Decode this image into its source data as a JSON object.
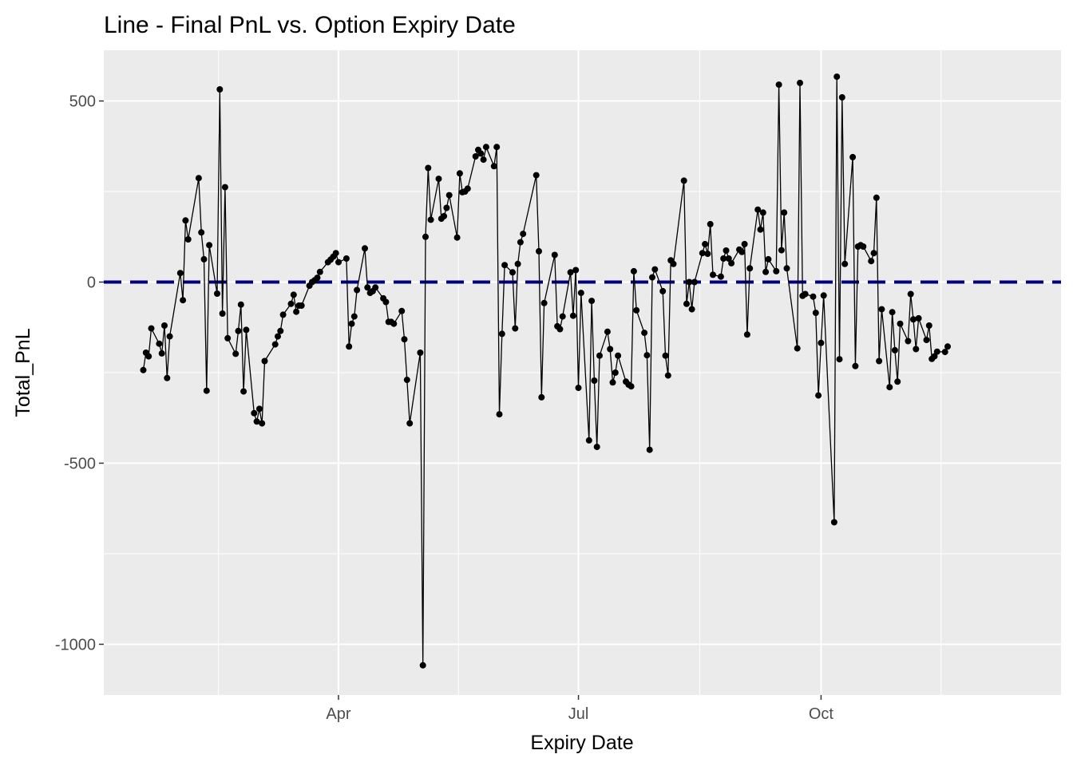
{
  "chart_data": {
    "type": "line",
    "title": "Line - Final PnL vs. Option Expiry Date",
    "xlabel": "Expiry Date",
    "ylabel": "Total_PnL",
    "x_tick_labels": [
      "Apr",
      "Jul",
      "Oct"
    ],
    "x_ticks": [
      "2025-04-01",
      "2025-07-01",
      "2025-10-01"
    ],
    "y_ticks": [
      500,
      0,
      -500,
      -1000
    ],
    "y_tick_labels": [
      "500",
      "0",
      "-500",
      "-1000"
    ],
    "xlim": [
      "2025-01-02",
      "2025-12-31"
    ],
    "ylim": [
      -1140,
      640
    ],
    "grid": true,
    "reference_line": {
      "y": 0,
      "style": "dashed",
      "color": "#00007a"
    },
    "colors": {
      "panel": "#ebebeb",
      "grid": "#ffffff",
      "line": "#000000",
      "point": "#000000",
      "reference": "#00007a"
    },
    "series": [
      {
        "points": [
          [
            "2025-01-17",
            -243
          ],
          [
            "2025-01-18",
            -195
          ],
          [
            "2025-01-19",
            -205
          ],
          [
            "2025-01-20",
            -128
          ],
          [
            "2025-01-23",
            -170
          ],
          [
            "2025-01-24",
            -197
          ],
          [
            "2025-01-25",
            -120
          ],
          [
            "2025-01-26",
            -265
          ],
          [
            "2025-01-27",
            -150
          ],
          [
            "2025-01-31",
            25
          ],
          [
            "2025-02-01",
            -50
          ],
          [
            "2025-02-02",
            170
          ],
          [
            "2025-02-03",
            118
          ],
          [
            "2025-02-07",
            287
          ],
          [
            "2025-02-08",
            137
          ],
          [
            "2025-02-09",
            63
          ],
          [
            "2025-02-10",
            -300
          ],
          [
            "2025-02-11",
            102
          ],
          [
            "2025-02-14",
            -32
          ],
          [
            "2025-02-15",
            532
          ],
          [
            "2025-02-16",
            -87
          ],
          [
            "2025-02-17",
            262
          ],
          [
            "2025-02-18",
            -155
          ],
          [
            "2025-02-21",
            -198
          ],
          [
            "2025-02-22",
            -135
          ],
          [
            "2025-02-23",
            -62
          ],
          [
            "2025-02-24",
            -302
          ],
          [
            "2025-02-25",
            -132
          ],
          [
            "2025-02-28",
            -362
          ],
          [
            "2025-03-01",
            -385
          ],
          [
            "2025-03-02",
            -350
          ],
          [
            "2025-03-03",
            -390
          ],
          [
            "2025-03-04",
            -218
          ],
          [
            "2025-03-08",
            -172
          ],
          [
            "2025-03-09",
            -150
          ],
          [
            "2025-03-10",
            -135
          ],
          [
            "2025-03-11",
            -90
          ],
          [
            "2025-03-14",
            -60
          ],
          [
            "2025-03-15",
            -35
          ],
          [
            "2025-03-16",
            -82
          ],
          [
            "2025-03-17",
            -65
          ],
          [
            "2025-03-18",
            -65
          ],
          [
            "2025-03-21",
            -10
          ],
          [
            "2025-03-22",
            0
          ],
          [
            "2025-03-23",
            5
          ],
          [
            "2025-03-24",
            12
          ],
          [
            "2025-03-25",
            28
          ],
          [
            "2025-03-28",
            55
          ],
          [
            "2025-03-29",
            62
          ],
          [
            "2025-03-30",
            70
          ],
          [
            "2025-03-31",
            80
          ],
          [
            "2025-04-01",
            55
          ],
          [
            "2025-04-04",
            65
          ],
          [
            "2025-04-05",
            -178
          ],
          [
            "2025-04-06",
            -115
          ],
          [
            "2025-04-07",
            -95
          ],
          [
            "2025-04-08",
            -22
          ],
          [
            "2025-04-11",
            93
          ],
          [
            "2025-04-12",
            -15
          ],
          [
            "2025-04-13",
            -30
          ],
          [
            "2025-04-14",
            -25
          ],
          [
            "2025-04-15",
            -15
          ],
          [
            "2025-04-18",
            -45
          ],
          [
            "2025-04-19",
            -55
          ],
          [
            "2025-04-20",
            -110
          ],
          [
            "2025-04-21",
            -110
          ],
          [
            "2025-04-22",
            -115
          ],
          [
            "2025-04-25",
            -80
          ],
          [
            "2025-04-26",
            -158
          ],
          [
            "2025-04-27",
            -270
          ],
          [
            "2025-04-28",
            -390
          ],
          [
            "2025-05-02",
            -195
          ],
          [
            "2025-05-03",
            -1058
          ],
          [
            "2025-05-04",
            125
          ],
          [
            "2025-05-05",
            315
          ],
          [
            "2025-05-06",
            172
          ],
          [
            "2025-05-09",
            285
          ],
          [
            "2025-05-10",
            175
          ],
          [
            "2025-05-11",
            182
          ],
          [
            "2025-05-12",
            205
          ],
          [
            "2025-05-13",
            240
          ],
          [
            "2025-05-16",
            123
          ],
          [
            "2025-05-17",
            300
          ],
          [
            "2025-05-18",
            248
          ],
          [
            "2025-05-19",
            250
          ],
          [
            "2025-05-20",
            258
          ],
          [
            "2025-05-23",
            347
          ],
          [
            "2025-05-24",
            365
          ],
          [
            "2025-05-25",
            355
          ],
          [
            "2025-05-26",
            338
          ],
          [
            "2025-05-27",
            373
          ],
          [
            "2025-05-30",
            320
          ],
          [
            "2025-05-31",
            373
          ],
          [
            "2025-06-01",
            -365
          ],
          [
            "2025-06-02",
            -143
          ],
          [
            "2025-06-03",
            47
          ],
          [
            "2025-06-06",
            27
          ],
          [
            "2025-06-07",
            -128
          ],
          [
            "2025-06-08",
            50
          ],
          [
            "2025-06-09",
            110
          ],
          [
            "2025-06-10",
            133
          ],
          [
            "2025-06-15",
            295
          ],
          [
            "2025-06-16",
            85
          ],
          [
            "2025-06-17",
            -318
          ],
          [
            "2025-06-18",
            -58
          ],
          [
            "2025-06-22",
            75
          ],
          [
            "2025-06-23",
            -122
          ],
          [
            "2025-06-24",
            -130
          ],
          [
            "2025-06-25",
            -95
          ],
          [
            "2025-06-28",
            27
          ],
          [
            "2025-06-29",
            -93
          ],
          [
            "2025-06-30",
            33
          ],
          [
            "2025-07-01",
            -292
          ],
          [
            "2025-07-02",
            -30
          ],
          [
            "2025-07-05",
            -437
          ],
          [
            "2025-07-06",
            -52
          ],
          [
            "2025-07-07",
            -272
          ],
          [
            "2025-07-08",
            -455
          ],
          [
            "2025-07-09",
            -203
          ],
          [
            "2025-07-12",
            -137
          ],
          [
            "2025-07-13",
            -185
          ],
          [
            "2025-07-14",
            -277
          ],
          [
            "2025-07-15",
            -250
          ],
          [
            "2025-07-16",
            -203
          ],
          [
            "2025-07-19",
            -275
          ],
          [
            "2025-07-20",
            -283
          ],
          [
            "2025-07-21",
            -288
          ],
          [
            "2025-07-22",
            30
          ],
          [
            "2025-07-23",
            -78
          ],
          [
            "2025-07-26",
            -140
          ],
          [
            "2025-07-27",
            -202
          ],
          [
            "2025-07-28",
            -463
          ],
          [
            "2025-07-29",
            13
          ],
          [
            "2025-07-30",
            35
          ],
          [
            "2025-08-02",
            -25
          ],
          [
            "2025-08-03",
            -203
          ],
          [
            "2025-08-04",
            -258
          ],
          [
            "2025-08-05",
            60
          ],
          [
            "2025-08-06",
            50
          ],
          [
            "2025-08-10",
            280
          ],
          [
            "2025-08-11",
            -60
          ],
          [
            "2025-08-12",
            0
          ],
          [
            "2025-08-13",
            -75
          ],
          [
            "2025-08-14",
            0
          ],
          [
            "2025-08-17",
            80
          ],
          [
            "2025-08-18",
            105
          ],
          [
            "2025-08-19",
            78
          ],
          [
            "2025-08-20",
            160
          ],
          [
            "2025-08-21",
            20
          ],
          [
            "2025-08-24",
            15
          ],
          [
            "2025-08-25",
            65
          ],
          [
            "2025-08-26",
            87
          ],
          [
            "2025-08-27",
            65
          ],
          [
            "2025-08-28",
            52
          ],
          [
            "2025-08-31",
            90
          ],
          [
            "2025-09-01",
            83
          ],
          [
            "2025-09-02",
            105
          ],
          [
            "2025-09-03",
            -145
          ],
          [
            "2025-09-04",
            38
          ],
          [
            "2025-09-07",
            200
          ],
          [
            "2025-09-08",
            145
          ],
          [
            "2025-09-09",
            192
          ],
          [
            "2025-09-10",
            28
          ],
          [
            "2025-09-11",
            63
          ],
          [
            "2025-09-14",
            30
          ],
          [
            "2025-09-15",
            545
          ],
          [
            "2025-09-16",
            88
          ],
          [
            "2025-09-17",
            192
          ],
          [
            "2025-09-18",
            38
          ],
          [
            "2025-09-22",
            -183
          ],
          [
            "2025-09-23",
            550
          ],
          [
            "2025-09-24",
            -38
          ],
          [
            "2025-09-25",
            -33
          ],
          [
            "2025-09-28",
            -40
          ],
          [
            "2025-09-29",
            -85
          ],
          [
            "2025-09-30",
            -313
          ],
          [
            "2025-10-01",
            -168
          ],
          [
            "2025-10-02",
            -37
          ],
          [
            "2025-10-06",
            -663
          ],
          [
            "2025-10-07",
            567
          ],
          [
            "2025-10-08",
            -213
          ],
          [
            "2025-10-09",
            510
          ],
          [
            "2025-10-10",
            50
          ],
          [
            "2025-10-13",
            345
          ],
          [
            "2025-10-14",
            -232
          ],
          [
            "2025-10-15",
            98
          ],
          [
            "2025-10-16",
            102
          ],
          [
            "2025-10-17",
            98
          ],
          [
            "2025-10-20",
            58
          ],
          [
            "2025-10-21",
            80
          ],
          [
            "2025-10-22",
            233
          ],
          [
            "2025-10-23",
            -218
          ],
          [
            "2025-10-24",
            -75
          ],
          [
            "2025-10-27",
            -290
          ],
          [
            "2025-10-28",
            -83
          ],
          [
            "2025-10-29",
            -188
          ],
          [
            "2025-10-30",
            -275
          ],
          [
            "2025-10-31",
            -115
          ],
          [
            "2025-11-03",
            -163
          ],
          [
            "2025-11-04",
            -33
          ],
          [
            "2025-11-05",
            -103
          ],
          [
            "2025-11-06",
            -185
          ],
          [
            "2025-11-07",
            -100
          ],
          [
            "2025-11-10",
            -160
          ],
          [
            "2025-11-11",
            -120
          ],
          [
            "2025-11-12",
            -212
          ],
          [
            "2025-11-13",
            -205
          ],
          [
            "2025-11-14",
            -192
          ],
          [
            "2025-11-17",
            -193
          ],
          [
            "2025-11-18",
            -178
          ]
        ]
      }
    ]
  }
}
